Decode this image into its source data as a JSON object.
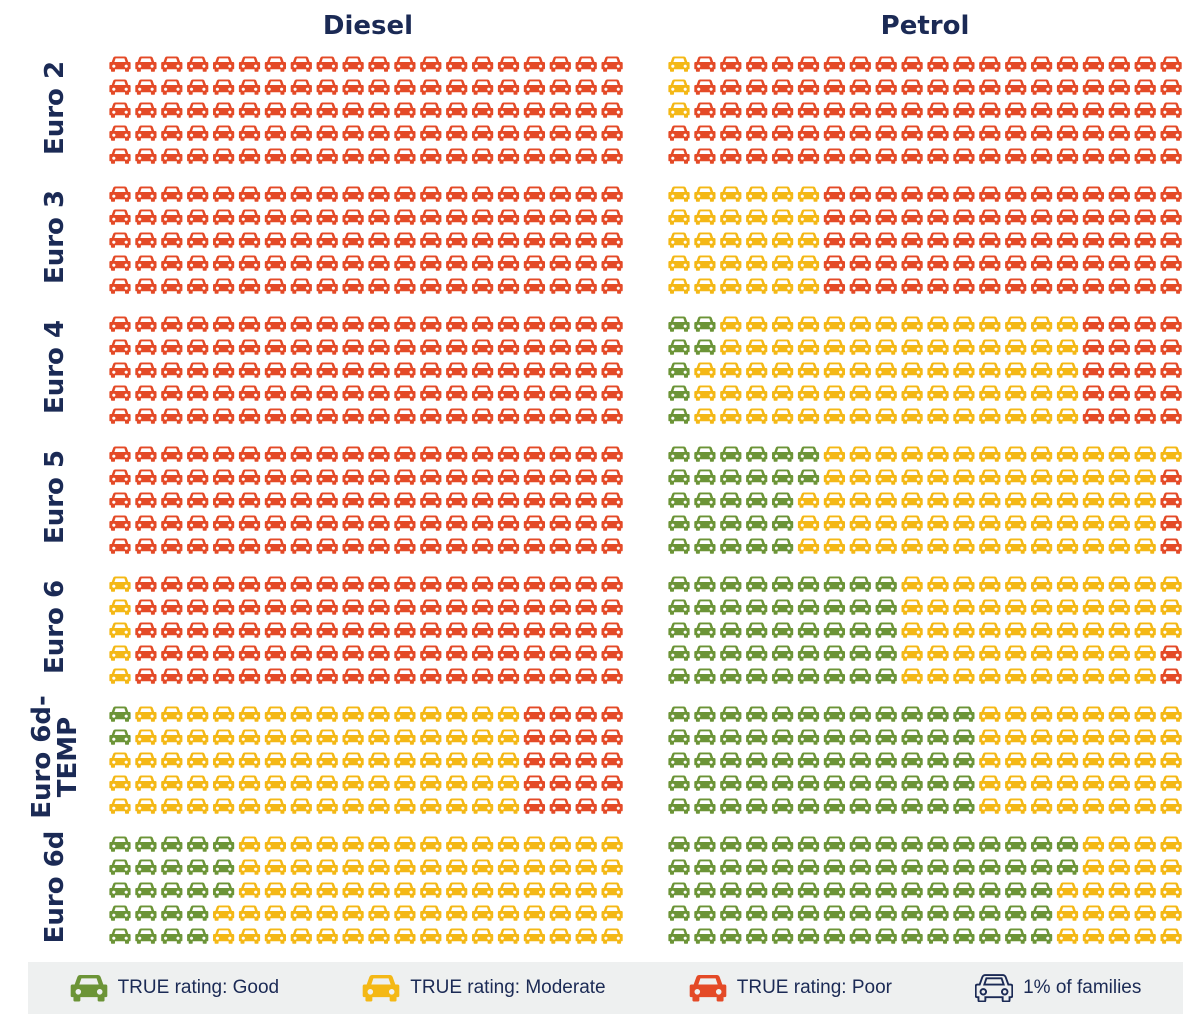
{
  "colors": {
    "good": "#6c9437",
    "moderate": "#f4b816",
    "poor": "#e44a27",
    "outline": "#1b2a55"
  },
  "legend": {
    "good_label": "TRUE rating: Good",
    "moderate_label": "TRUE rating: Moderate",
    "poor_label": "TRUE rating: Poor",
    "unit_label": "1% of families"
  },
  "chart_data": {
    "type": "waffle",
    "unit": "1% of families",
    "columns": [
      "Diesel",
      "Petrol"
    ],
    "rows": [
      "Euro 2",
      "Euro 3",
      "Euro 4",
      "Euro 5",
      "Euro 6",
      "Euro 6d-\nTEMP",
      "Euro 6d"
    ],
    "series": [
      {
        "name": "TRUE rating: Good",
        "key": "good"
      },
      {
        "name": "TRUE rating: Moderate",
        "key": "moderate"
      },
      {
        "name": "TRUE rating: Poor",
        "key": "poor"
      }
    ],
    "values": {
      "Diesel": [
        {
          "good": 0,
          "moderate": 0,
          "poor": 100
        },
        {
          "good": 0,
          "moderate": 0,
          "poor": 100
        },
        {
          "good": 0,
          "moderate": 0,
          "poor": 100
        },
        {
          "good": 0,
          "moderate": 0,
          "poor": 100
        },
        {
          "good": 0,
          "moderate": 5,
          "poor": 95
        },
        {
          "good": 2,
          "moderate": 78,
          "poor": 20
        },
        {
          "good": 23,
          "moderate": 77,
          "poor": 0
        }
      ],
      "Petrol": [
        {
          "good": 0,
          "moderate": 3,
          "poor": 97
        },
        {
          "good": 0,
          "moderate": 30,
          "poor": 70
        },
        {
          "good": 7,
          "moderate": 73,
          "poor": 20
        },
        {
          "good": 27,
          "moderate": 69,
          "poor": 4
        },
        {
          "good": 45,
          "moderate": 53,
          "poor": 2
        },
        {
          "good": 60,
          "moderate": 40,
          "poor": 0
        },
        {
          "good": 77,
          "moderate": 23,
          "poor": 0
        }
      ]
    }
  }
}
